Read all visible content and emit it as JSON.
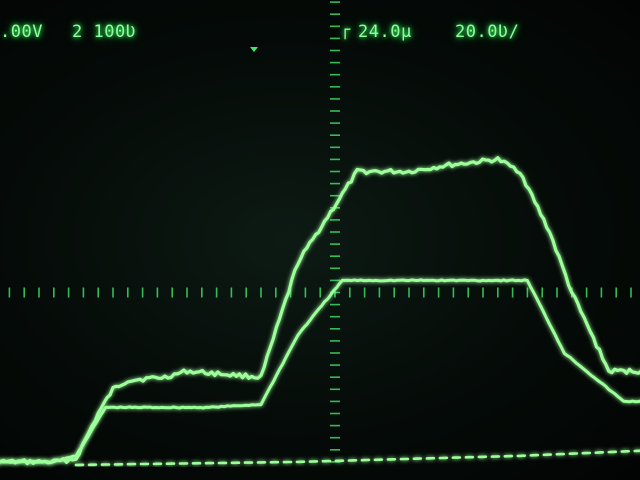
{
  "readout": {
    "ch1_scale": ".00V",
    "ch2_scale": "2 100Ʋ",
    "trigger_icon": "trigger-edge-icon",
    "timebase": "24.0μ",
    "sample_rate": "20.0Ʋ/"
  },
  "colors": {
    "trace": "#9dff9a",
    "graticule": "#3fe86a",
    "text": "#8dff9a",
    "background": "#050b08"
  },
  "chart_data": {
    "type": "line",
    "title": "",
    "xlabel": "",
    "ylabel": "",
    "grid": true,
    "xlim": [
      0,
      10.4
    ],
    "ylim": [
      0,
      8.3
    ],
    "series": [
      {
        "x": [
          0,
          1.2,
          1.5,
          1.8,
          2.0,
          2.2,
          2.7,
          3.0,
          3.5,
          4.0,
          4.5,
          5.3,
          6.0,
          6.5,
          7.2,
          7.5,
          7.9,
          8.2,
          8.7,
          9.3,
          10.4
        ],
        "y": [
          0.2,
          0.2,
          0.25,
          1.0,
          1.4,
          1.55,
          1.6,
          1.7,
          1.65,
          1.6,
          3.5,
          5.0,
          5.0,
          5.1,
          5.2,
          5.0,
          4.0,
          3.0,
          1.7,
          1.7,
          1.65
        ]
      },
      {
        "x": [
          0,
          1.2,
          1.5,
          1.9,
          2.5,
          3.3,
          4.0,
          4.5,
          5.1,
          6.0,
          7.0,
          7.6,
          8.1,
          8.9,
          10.4
        ],
        "y": [
          0.2,
          0.2,
          0.3,
          1.1,
          1.1,
          1.1,
          1.15,
          2.3,
          3.2,
          3.2,
          3.2,
          3.2,
          2.0,
          1.2,
          1.2
        ]
      },
      {
        "x": [
          1.5,
          4.5,
          7.5,
          10.4
        ],
        "y": [
          0.15,
          0.2,
          0.3,
          0.45
        ]
      }
    ]
  }
}
